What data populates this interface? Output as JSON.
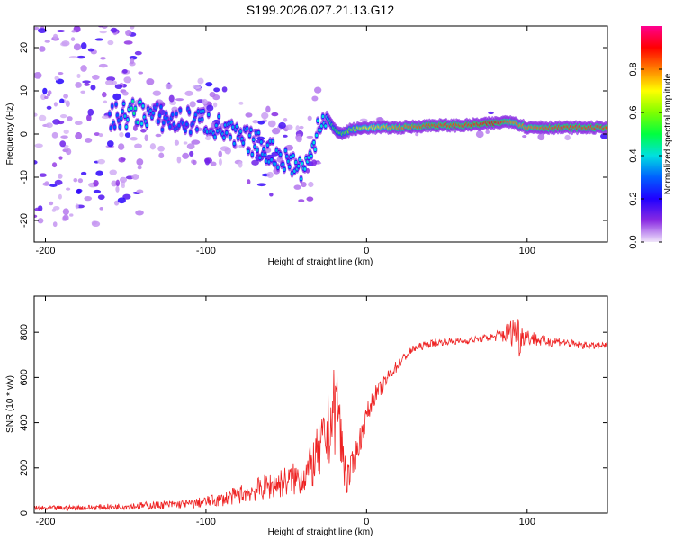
{
  "title": "S199.2026.027.21.13.G12",
  "chart_data": [
    {
      "type": "heatmap",
      "title": "",
      "xlabel": "Height of straight line (km)",
      "ylabel": "Frequency (Hz)",
      "xlim": [
        -207,
        150
      ],
      "ylim": [
        -25,
        25
      ],
      "xticks": [
        -200,
        -100,
        0,
        100
      ],
      "yticks": [
        20,
        10,
        0,
        -10,
        -20
      ],
      "colorbar": {
        "label": "Normalized spectral amplitude",
        "ticks": [
          0.0,
          0.2,
          0.4,
          0.6,
          0.8
        ],
        "range": [
          0,
          1
        ],
        "colors": [
          "#e8dcf7",
          "#7f00ff",
          "#0000ff",
          "#00bfff",
          "#00ff80",
          "#80ff00",
          "#ffff00",
          "#ff8000",
          "#ff0000",
          "#ff00a0"
        ]
      },
      "ridge": {
        "x": [
          -155,
          -145,
          -140,
          -130,
          -120,
          -110,
          -100,
          -90,
          -80,
          -70,
          -60,
          -50,
          -40,
          -35,
          -30,
          -25,
          -20,
          -15,
          -10,
          0,
          10,
          20,
          40,
          60,
          80,
          90,
          100,
          120,
          150
        ],
        "freq": [
          4,
          5,
          5,
          4,
          3,
          3,
          3,
          1,
          -1,
          -2,
          -4,
          -6,
          -8,
          -6,
          3,
          4,
          1,
          0,
          1,
          1.5,
          1.5,
          1.5,
          2,
          2,
          2.5,
          3,
          1.5,
          1.5,
          1.5
        ],
        "amplitude": [
          0.3,
          0.45,
          0.4,
          0.3,
          0.3,
          0.3,
          0.35,
          0.35,
          0.35,
          0.35,
          0.35,
          0.35,
          0.4,
          0.4,
          0.4,
          0.4,
          0.5,
          0.55,
          0.6,
          0.7,
          0.75,
          0.8,
          0.85,
          0.85,
          0.9,
          0.8,
          0.8,
          0.85,
          0.85
        ]
      }
    },
    {
      "type": "line",
      "title": "",
      "xlabel": "Height of straight line (km)",
      "ylabel": "SNR (10 * v/v)",
      "xlim": [
        -207,
        150
      ],
      "ylim": [
        0,
        960
      ],
      "xticks": [
        -200,
        -100,
        0,
        100
      ],
      "yticks": [
        0,
        200,
        400,
        600,
        800
      ],
      "color": "#ee2222",
      "series": [
        {
          "name": "SNR",
          "x": [
            -207,
            -190,
            -170,
            -150,
            -130,
            -110,
            -100,
            -90,
            -80,
            -70,
            -60,
            -50,
            -40,
            -35,
            -30,
            -25,
            -22,
            -20,
            -18,
            -16,
            -14,
            -12,
            -10,
            -5,
            0,
            5,
            10,
            15,
            20,
            25,
            30,
            40,
            50,
            60,
            70,
            80,
            85,
            90,
            93,
            95,
            97,
            100,
            110,
            120,
            130,
            140,
            150
          ],
          "y": [
            20,
            22,
            25,
            30,
            35,
            40,
            50,
            60,
            80,
            100,
            120,
            140,
            160,
            200,
            260,
            330,
            420,
            450,
            500,
            320,
            220,
            150,
            180,
            300,
            430,
            520,
            560,
            620,
            660,
            700,
            730,
            750,
            760,
            760,
            770,
            780,
            790,
            800,
            820,
            780,
            790,
            780,
            760,
            760,
            745,
            740,
            740
          ],
          "noise": [
            12,
            12,
            12,
            15,
            18,
            20,
            25,
            30,
            40,
            50,
            60,
            70,
            80,
            100,
            130,
            160,
            190,
            200,
            190,
            150,
            110,
            80,
            70,
            60,
            50,
            40,
            35,
            30,
            25,
            20,
            18,
            16,
            15,
            15,
            15,
            20,
            40,
            60,
            90,
            100,
            60,
            40,
            25,
            20,
            18,
            15,
            15
          ]
        }
      ]
    }
  ]
}
